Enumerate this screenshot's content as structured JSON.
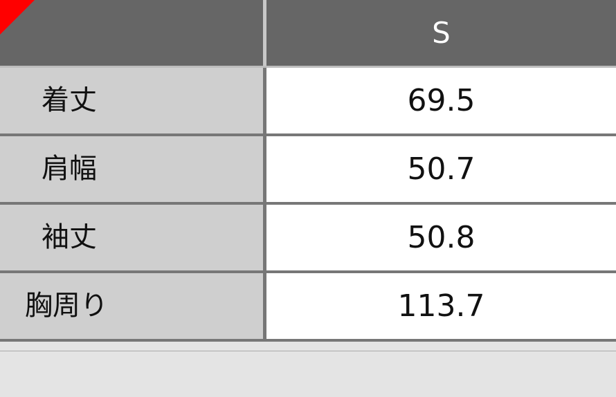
{
  "header": {
    "size_label": "S",
    "corner_color": "#ff0000"
  },
  "rows": [
    {
      "label": "着丈",
      "value": "69.5"
    },
    {
      "label": "肩幅",
      "value": "50.7"
    },
    {
      "label": "袖丈",
      "value": "50.8"
    },
    {
      "label": "胸周り",
      "value": "113.7"
    }
  ]
}
